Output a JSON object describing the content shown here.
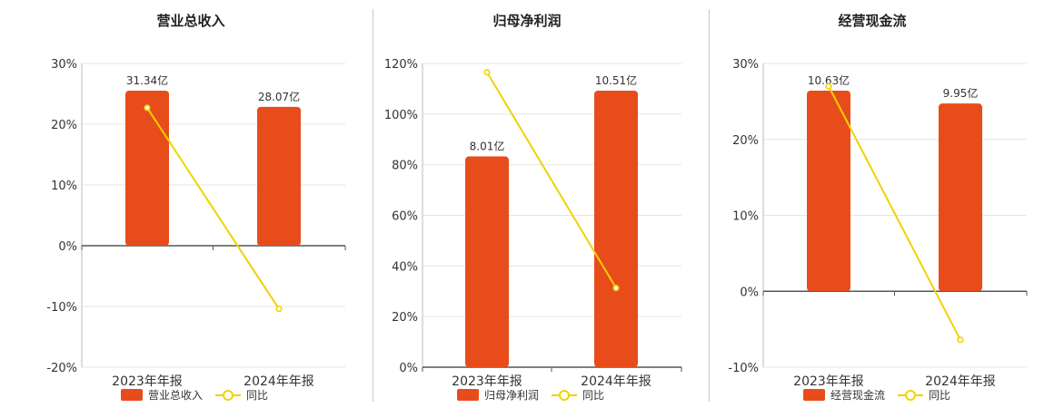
{
  "colors": {
    "bar": "#E84C1A",
    "line": "#F2D100",
    "grid": "#e4e4e4",
    "axis": "#555555",
    "text": "#333333"
  },
  "chart_data": [
    {
      "type": "bar",
      "title": "营业总收入",
      "categories": [
        "2023年年报",
        "2024年年报"
      ],
      "series": [
        {
          "name": "营业总收入",
          "type": "bar",
          "values": [
            31.34,
            28.07
          ],
          "labels": [
            "31.34亿",
            "28.07亿"
          ],
          "color": "#E84C1A"
        },
        {
          "name": "同比",
          "type": "line",
          "values": [
            22.7,
            -10.4
          ],
          "color": "#F2D100"
        }
      ],
      "yticks": [
        "30%",
        "20%",
        "10%",
        "0%",
        "-10%",
        "-20%"
      ],
      "ylim": [
        -20,
        30
      ],
      "legend": "bottom"
    },
    {
      "type": "bar",
      "title": "归母净利润",
      "categories": [
        "2023年年报",
        "2024年年报"
      ],
      "series": [
        {
          "name": "归母净利润",
          "type": "bar",
          "values": [
            8.01,
            10.51
          ],
          "labels": [
            "8.01亿",
            "10.51亿"
          ],
          "color": "#E84C1A"
        },
        {
          "name": "同比",
          "type": "line",
          "values": [
            116.5,
            31.3
          ],
          "color": "#F2D100"
        }
      ],
      "yticks": [
        "120%",
        "100%",
        "80%",
        "60%",
        "40%",
        "20%",
        "0%"
      ],
      "ylim": [
        0,
        120
      ],
      "legend": "bottom"
    },
    {
      "type": "bar",
      "title": "经营现金流",
      "categories": [
        "2023年年报",
        "2024年年报"
      ],
      "series": [
        {
          "name": "经营现金流",
          "type": "bar",
          "values": [
            10.63,
            9.95
          ],
          "labels": [
            "10.63亿",
            "9.95亿"
          ],
          "color": "#E84C1A"
        },
        {
          "name": "同比",
          "type": "line",
          "values": [
            27.0,
            -6.4
          ],
          "color": "#F2D100"
        }
      ],
      "yticks": [
        "30%",
        "20%",
        "10%",
        "0%",
        "-10%"
      ],
      "ylim": [
        -10,
        30
      ],
      "legend": "bottom"
    }
  ]
}
